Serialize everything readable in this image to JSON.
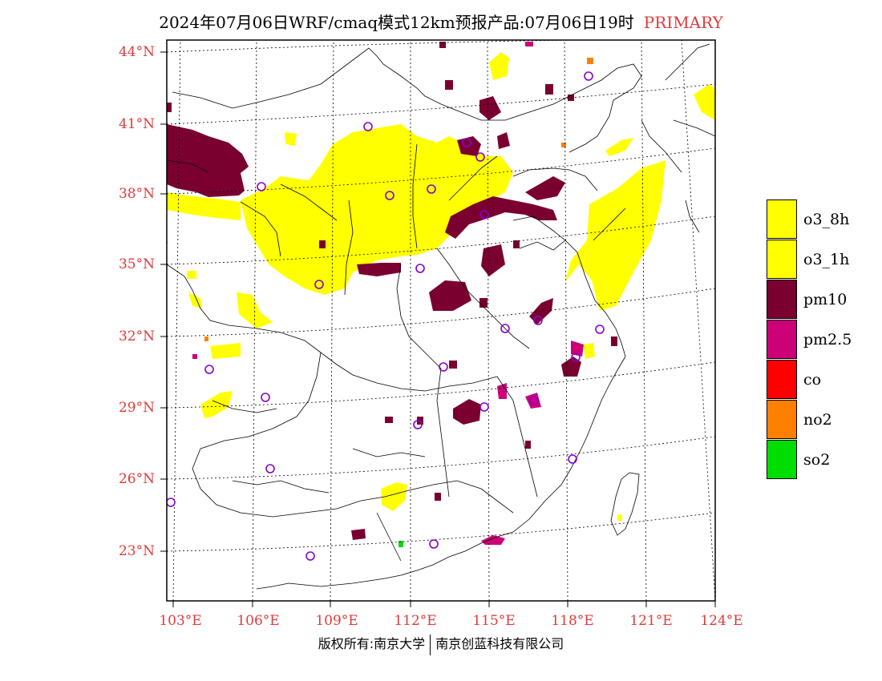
{
  "title": {
    "main": "2024年07月06日WRF/cmaq模式12km预报产品:07月06日19时",
    "tag": "PRIMARY"
  },
  "map": {
    "lat_labels": [
      "44°N",
      "41°N",
      "38°N",
      "35°N",
      "32°N",
      "29°N",
      "26°N",
      "23°N"
    ],
    "lon_labels": [
      "103°E",
      "106°E",
      "109°E",
      "112°E",
      "115°E",
      "118°E",
      "121°E",
      "124°E"
    ],
    "colors": {
      "o3_8h": "#ffff00",
      "pm10": "#7a0030",
      "pm2_5": "#cc0077",
      "no2": "#ff8000",
      "so2": "#00dd00",
      "station": "#8800cc"
    }
  },
  "legend": [
    {
      "label": "o3_8h",
      "color": "#ffff00"
    },
    {
      "label": "o3_1h",
      "color": "#ffff00"
    },
    {
      "label": "pm10",
      "color": "#7a0030"
    },
    {
      "label": "pm2.5",
      "color": "#cc0077"
    },
    {
      "label": "co",
      "color": "#ff0000"
    },
    {
      "label": "no2",
      "color": "#ff8000"
    },
    {
      "label": "so2",
      "color": "#00dd00"
    }
  ],
  "footer": {
    "left": "版权所有:南京大学",
    "right": "南京创蓝科技有限公司"
  }
}
